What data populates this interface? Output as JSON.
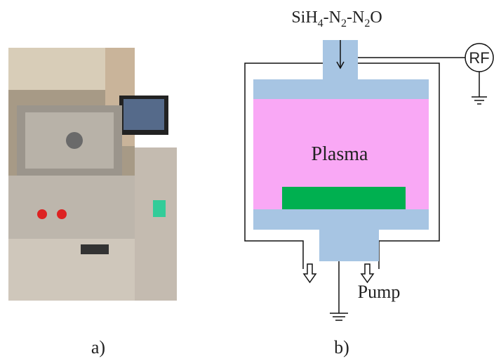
{
  "panel_a": {
    "label": "a)"
  },
  "panel_b": {
    "label": "b)",
    "gas_label": [
      "SiH",
      "4",
      "-N",
      "2",
      "-N",
      "2",
      "O"
    ],
    "rf_label": "RF",
    "plasma_label": "Plasma",
    "pump_label": "Pump"
  }
}
